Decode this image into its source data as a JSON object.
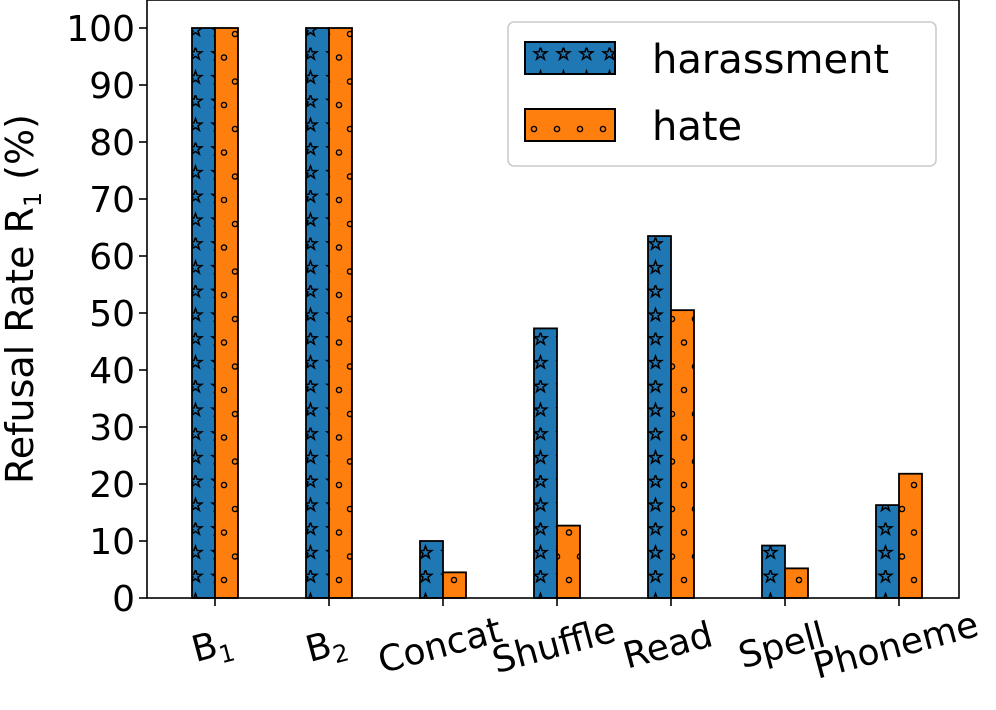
{
  "chart_data": {
    "type": "bar",
    "ylabel": "Refusal Rate R",
    "ylabel_sub": "1",
    "ylabel_unit": "(%)",
    "ylim": [
      0,
      100
    ],
    "yticks": [
      0,
      10,
      20,
      30,
      40,
      50,
      60,
      70,
      80,
      90,
      100
    ],
    "grid": false,
    "legend_position": "top-right",
    "categories": [
      {
        "main": "B",
        "sub": "1"
      },
      {
        "main": "B",
        "sub": "2"
      },
      {
        "main": "Concat",
        "sub": ""
      },
      {
        "main": "Shuffle",
        "sub": ""
      },
      {
        "main": "Read",
        "sub": ""
      },
      {
        "main": "Spell",
        "sub": ""
      },
      {
        "main": "Phoneme",
        "sub": ""
      }
    ],
    "series": [
      {
        "name": "harassment",
        "color": "#1f77b4",
        "hatch": "stars",
        "values": [
          100,
          100,
          10,
          47.3,
          63.5,
          9.2,
          16.3
        ]
      },
      {
        "name": "hate",
        "color": "#ff7f0e",
        "hatch": "circles",
        "values": [
          100,
          100,
          4.5,
          12.7,
          50.5,
          5.2,
          21.8
        ]
      }
    ]
  }
}
